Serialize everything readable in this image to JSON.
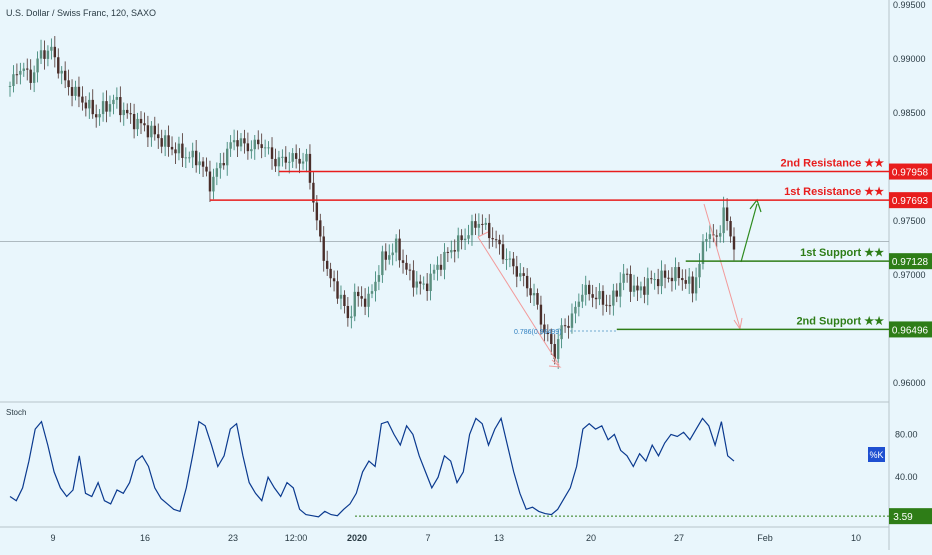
{
  "header": {
    "symbol_title": "U.S. Dollar / Swiss Franc, 120, SAXO"
  },
  "chart_data": {
    "type": "candlestick",
    "title": "U.S. Dollar / Swiss Franc, 120, SAXO",
    "price_axis": {
      "ticks": [
        "0.99500",
        "0.99000",
        "0.98500",
        "0.97500",
        "0.97000",
        "0.96000"
      ],
      "range": [
        0.9566,
        0.995
      ]
    },
    "time_axis": {
      "labels": [
        "9",
        "16",
        "23",
        "12:00",
        "2020",
        "7",
        "13",
        "20",
        "27",
        "Feb",
        "10"
      ]
    },
    "price_path": [
      {
        "t": 0,
        "v": 0.9875
      },
      {
        "t": 3,
        "v": 0.9893
      },
      {
        "t": 6,
        "v": 0.9882
      },
      {
        "t": 9,
        "v": 0.9905
      },
      {
        "t": 12,
        "v": 0.9908
      },
      {
        "t": 16,
        "v": 0.9878
      },
      {
        "t": 20,
        "v": 0.9865
      },
      {
        "t": 25,
        "v": 0.9848
      },
      {
        "t": 30,
        "v": 0.9862
      },
      {
        "t": 35,
        "v": 0.9845
      },
      {
        "t": 40,
        "v": 0.9835
      },
      {
        "t": 45,
        "v": 0.9822
      },
      {
        "t": 50,
        "v": 0.9812
      },
      {
        "t": 55,
        "v": 0.9806
      },
      {
        "t": 58,
        "v": 0.9784
      },
      {
        "t": 61,
        "v": 0.9802
      },
      {
        "t": 65,
        "v": 0.9826
      },
      {
        "t": 69,
        "v": 0.9818
      },
      {
        "t": 73,
        "v": 0.9822
      },
      {
        "t": 77,
        "v": 0.9805
      },
      {
        "t": 81,
        "v": 0.9808
      },
      {
        "t": 86,
        "v": 0.9806
      },
      {
        "t": 88,
        "v": 0.977
      },
      {
        "t": 90,
        "v": 0.973
      },
      {
        "t": 93,
        "v": 0.9695
      },
      {
        "t": 96,
        "v": 0.968
      },
      {
        "t": 98,
        "v": 0.9658
      },
      {
        "t": 100,
        "v": 0.968
      },
      {
        "t": 104,
        "v": 0.9676
      },
      {
        "t": 108,
        "v": 0.9714
      },
      {
        "t": 112,
        "v": 0.9726
      },
      {
        "t": 116,
        "v": 0.9698
      },
      {
        "t": 120,
        "v": 0.9688
      },
      {
        "t": 124,
        "v": 0.9708
      },
      {
        "t": 128,
        "v": 0.9724
      },
      {
        "t": 132,
        "v": 0.9736
      },
      {
        "t": 136,
        "v": 0.975
      },
      {
        "t": 140,
        "v": 0.9735
      },
      {
        "t": 144,
        "v": 0.9715
      },
      {
        "t": 148,
        "v": 0.97
      },
      {
        "t": 152,
        "v": 0.968
      },
      {
        "t": 155,
        "v": 0.9648
      },
      {
        "t": 158,
        "v": 0.9628
      },
      {
        "t": 160,
        "v": 0.965
      },
      {
        "t": 163,
        "v": 0.966
      },
      {
        "t": 166,
        "v": 0.9686
      },
      {
        "t": 170,
        "v": 0.968
      },
      {
        "t": 174,
        "v": 0.9672
      },
      {
        "t": 178,
        "v": 0.97
      },
      {
        "t": 182,
        "v": 0.9684
      },
      {
        "t": 186,
        "v": 0.9695
      },
      {
        "t": 190,
        "v": 0.9698
      },
      {
        "t": 194,
        "v": 0.97
      },
      {
        "t": 198,
        "v": 0.9688
      },
      {
        "t": 200,
        "v": 0.971
      },
      {
        "t": 202,
        "v": 0.974
      },
      {
        "t": 205,
        "v": 0.9732
      },
      {
        "t": 207,
        "v": 0.976
      },
      {
        "t": 209,
        "v": 0.9735
      },
      {
        "t": 210,
        "v": 0.973
      }
    ],
    "levels": [
      {
        "label": "2nd Resistance ★★",
        "value": "0.97958",
        "price": 0.97958,
        "color": "#e81d1d",
        "from_t": 78
      },
      {
        "label": "1st Resistance ★★",
        "value": "0.97693",
        "price": 0.97693,
        "color": "#e81d1d",
        "from_t": 58
      },
      {
        "label": "1st Support ★★",
        "value": "0.97128",
        "price": 0.97128,
        "color": "#2e7d17",
        "from_t": 196
      },
      {
        "label": "2nd Support ★★",
        "value": "0.96496",
        "price": 0.96496,
        "color": "#2e7d17",
        "from_t": 176
      }
    ],
    "current_price_line": 0.9731,
    "fib_label": "0.786(0.96499)",
    "stoch": {
      "label": "Stoch",
      "series_label": "%K",
      "ticks": [
        "80.00",
        "40.00"
      ],
      "min_marker": "3.59",
      "values": [
        22,
        18,
        30,
        55,
        85,
        92,
        70,
        45,
        30,
        22,
        28,
        60,
        25,
        22,
        35,
        18,
        15,
        28,
        25,
        35,
        55,
        60,
        50,
        30,
        20,
        15,
        10,
        8,
        30,
        60,
        92,
        88,
        70,
        50,
        60,
        85,
        90,
        60,
        35,
        25,
        18,
        40,
        30,
        22,
        35,
        30,
        10,
        5,
        4,
        3,
        8,
        5,
        4,
        10,
        15,
        25,
        45,
        55,
        50,
        90,
        92,
        80,
        70,
        88,
        80,
        60,
        45,
        30,
        40,
        60,
        55,
        35,
        45,
        80,
        95,
        90,
        70,
        85,
        95,
        70,
        45,
        25,
        10,
        12,
        8,
        6,
        5,
        10,
        20,
        30,
        50,
        85,
        90,
        85,
        88,
        75,
        80,
        65,
        60,
        50,
        62,
        55,
        70,
        60,
        72,
        80,
        78,
        82,
        75,
        85,
        95,
        88,
        70,
        92,
        60,
        55
      ]
    },
    "colors": {
      "up": "#2e7d6b",
      "down": "#4a2e2a",
      "resistance": "#e81d1d",
      "support": "#2e7d17",
      "stoch_line": "#0b3a8f",
      "stoch_badge": "#1e4fd1"
    }
  }
}
